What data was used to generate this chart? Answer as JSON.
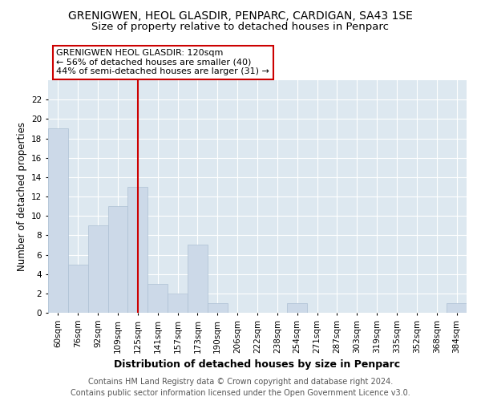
{
  "title": "GRENIGWEN, HEOL GLASDIR, PENPARC, CARDIGAN, SA43 1SE",
  "subtitle": "Size of property relative to detached houses in Penparc",
  "xlabel": "Distribution of detached houses by size in Penparc",
  "ylabel": "Number of detached properties",
  "bar_labels": [
    "60sqm",
    "76sqm",
    "92sqm",
    "109sqm",
    "125sqm",
    "141sqm",
    "157sqm",
    "173sqm",
    "190sqm",
    "206sqm",
    "222sqm",
    "238sqm",
    "254sqm",
    "271sqm",
    "287sqm",
    "303sqm",
    "319sqm",
    "335sqm",
    "352sqm",
    "368sqm",
    "384sqm"
  ],
  "bar_values": [
    19,
    5,
    9,
    11,
    13,
    3,
    2,
    7,
    1,
    0,
    0,
    0,
    1,
    0,
    0,
    0,
    0,
    0,
    0,
    0,
    1
  ],
  "bar_color": "#ccd9e8",
  "bar_edge_color": "#adc0d4",
  "vline_x": 4.0,
  "vline_color": "#cc0000",
  "annotation_title": "GRENIGWEN HEOL GLASDIR: 120sqm",
  "annotation_line1": "← 56% of detached houses are smaller (40)",
  "annotation_line2": "44% of semi-detached houses are larger (31) →",
  "annotation_box_color": "#ffffff",
  "annotation_box_edge": "#cc0000",
  "ylim": [
    0,
    24
  ],
  "yticks": [
    0,
    2,
    4,
    6,
    8,
    10,
    12,
    14,
    16,
    18,
    20,
    22
  ],
  "background_color": "#dde8f0",
  "footer_line1": "Contains HM Land Registry data © Crown copyright and database right 2024.",
  "footer_line2": "Contains public sector information licensed under the Open Government Licence v3.0.",
  "title_fontsize": 10,
  "subtitle_fontsize": 9.5,
  "xlabel_fontsize": 9,
  "ylabel_fontsize": 8.5,
  "tick_fontsize": 7.5,
  "annotation_fontsize": 8,
  "footer_fontsize": 7
}
